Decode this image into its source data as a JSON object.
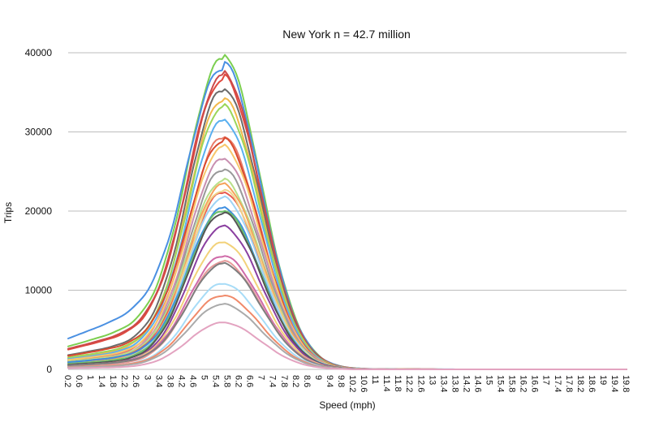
{
  "chart_data": {
    "type": "line",
    "title": "New York n = 42.7 million",
    "xlabel": "Speed (mph)",
    "ylabel": "Trips",
    "ylim": [
      0,
      40000
    ],
    "yticks": [
      0,
      10000,
      20000,
      30000,
      40000
    ],
    "xlim": [
      0.2,
      19.8
    ],
    "x_tick_labels": [
      "0.2",
      "0.6",
      "1",
      "1.4",
      "1.8",
      "2.2",
      "2.6",
      "3",
      "3.4",
      "3.8",
      "4.2",
      "4.6",
      "5",
      "5.4",
      "5.8",
      "6.2",
      "6.6",
      "7",
      "7.4",
      "7.8",
      "8.2",
      "8.6",
      "9",
      "9.4",
      "9.8",
      "10.2",
      "10.6",
      "11",
      "11.4",
      "11.8",
      "12.2",
      "12.6",
      "13",
      "13.4",
      "13.8",
      "14.2",
      "14.6",
      "15",
      "15.4",
      "15.8",
      "16.2",
      "16.6",
      "17",
      "17.4",
      "17.8",
      "18.2",
      "18.6",
      "19",
      "19.4",
      "19.8"
    ],
    "grid": true,
    "legend": "none",
    "series_shape": "Each curve rises from a small value at 0.2 mph, peaks near 5.6 mph and falls to near zero by about 11.5 mph.",
    "series": [
      {
        "color": "#7ccf50",
        "peak": 39200,
        "start": 2900
      },
      {
        "color": "#4a90e2",
        "peak": 38000,
        "start": 3900
      },
      {
        "color": "#e0493f",
        "peak": 36500,
        "start": 2500
      },
      {
        "color": "#cc4a4a",
        "peak": 37000,
        "start": 2600
      },
      {
        "color": "#6b6b6b",
        "peak": 35200,
        "start": 1800
      },
      {
        "color": "#f2b84b",
        "peak": 34000,
        "start": 1400
      },
      {
        "color": "#9bd65a",
        "peak": 33000,
        "start": 1500
      },
      {
        "color": "#5ab0f0",
        "peak": 31300,
        "start": 1300
      },
      {
        "color": "#e87c6a",
        "peak": 29300,
        "start": 1100
      },
      {
        "color": "#d94a2f",
        "peak": 28800,
        "start": 1700
      },
      {
        "color": "#f7c76b",
        "peak": 28000,
        "start": 1200
      },
      {
        "color": "#c88fb0",
        "peak": 26500,
        "start": 1000
      },
      {
        "color": "#999999",
        "peak": 25200,
        "start": 900
      },
      {
        "color": "#b8e08a",
        "peak": 23800,
        "start": 1000
      },
      {
        "color": "#f5a35c",
        "peak": 23300,
        "start": 800
      },
      {
        "color": "#e85a4f",
        "peak": 22300,
        "start": 900
      },
      {
        "color": "#f0d58a",
        "peak": 22600,
        "start": 700
      },
      {
        "color": "#9fd4f5",
        "peak": 21600,
        "start": 700
      },
      {
        "color": "#3d8ee0",
        "peak": 20300,
        "start": 900
      },
      {
        "color": "#6cc26c",
        "peak": 20000,
        "start": 700
      },
      {
        "color": "#555555",
        "peak": 19700,
        "start": 600
      },
      {
        "color": "#8a3fa0",
        "peak": 18000,
        "start": 500
      },
      {
        "color": "#f2d27a",
        "peak": 16000,
        "start": 500
      },
      {
        "color": "#cf6aa8",
        "peak": 14300,
        "start": 500
      },
      {
        "color": "#e79a9a",
        "peak": 13600,
        "start": 400
      },
      {
        "color": "#7e7e7e",
        "peak": 13300,
        "start": 500
      },
      {
        "color": "#a7dcf7",
        "peak": 10800,
        "start": 300
      },
      {
        "color": "#f08a6a",
        "peak": 9300,
        "start": 300
      },
      {
        "color": "#aaaaaa",
        "peak": 8200,
        "start": 250
      },
      {
        "color": "#e3a3c0",
        "peak": 5900,
        "start": 150
      }
    ]
  }
}
